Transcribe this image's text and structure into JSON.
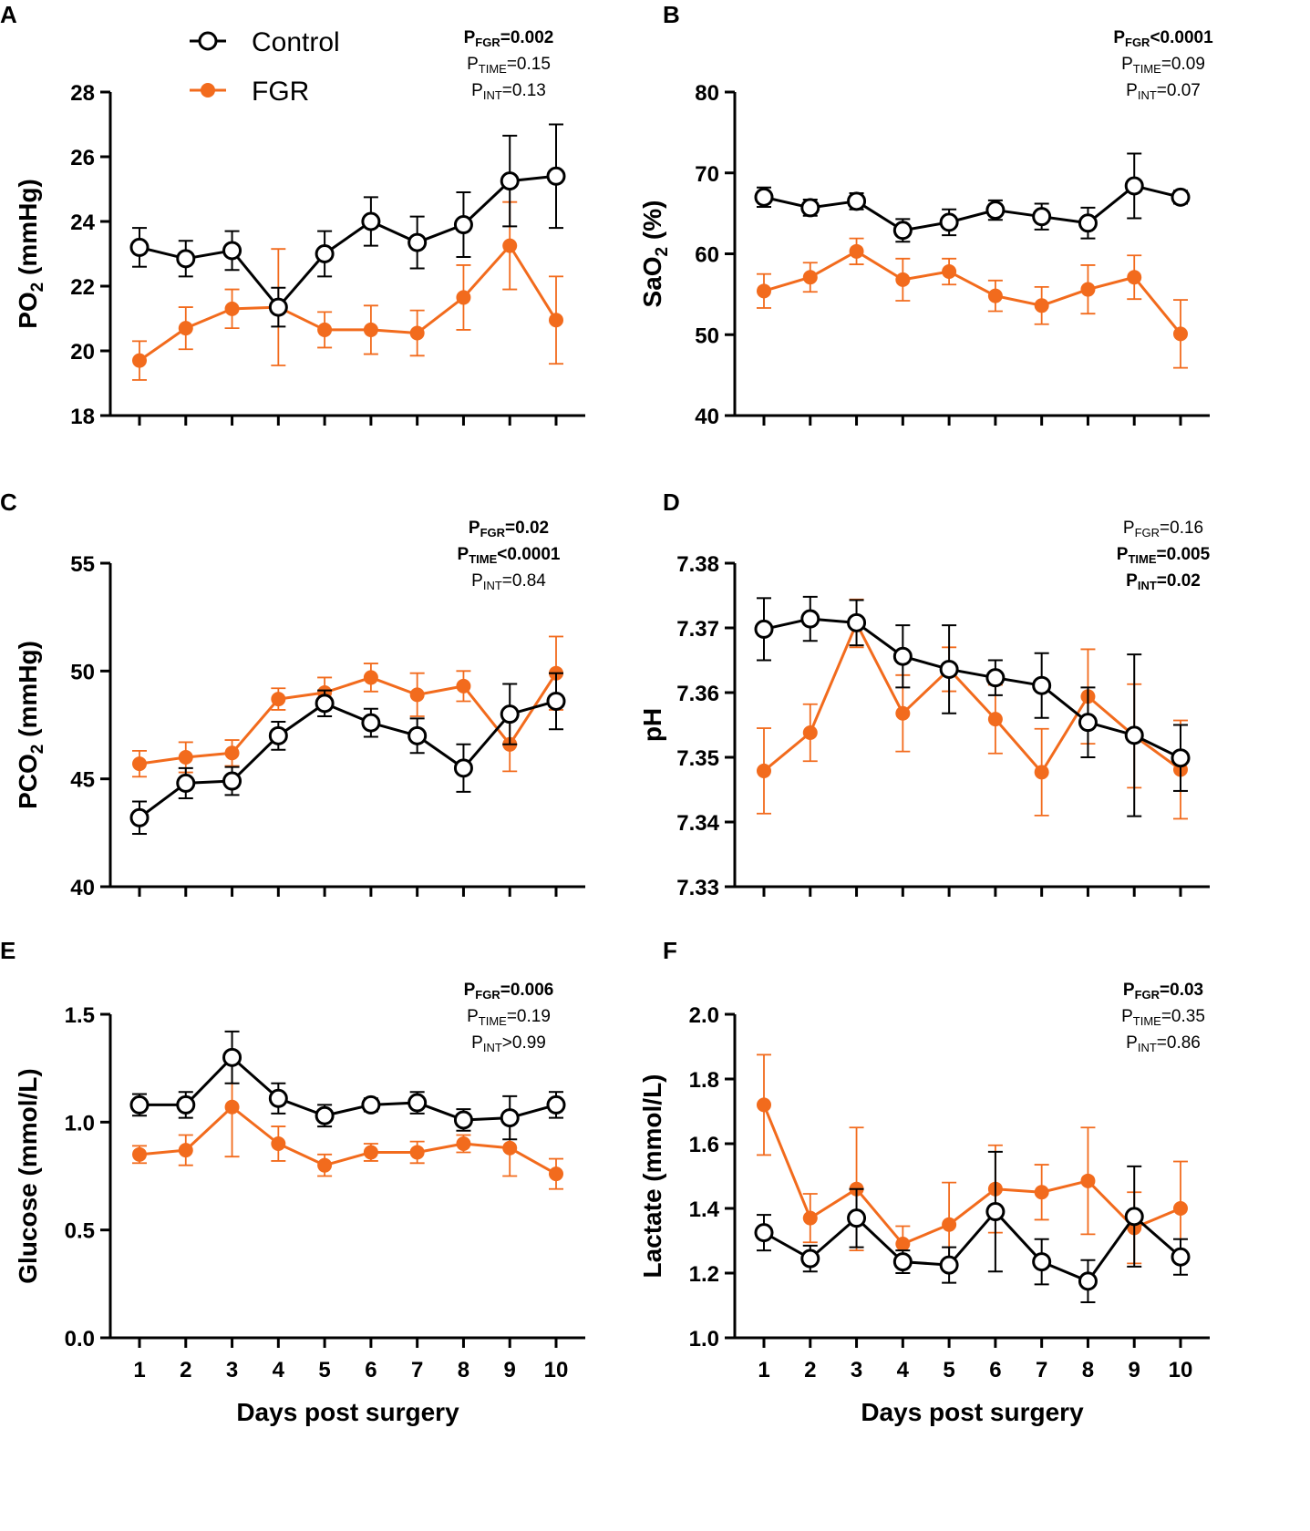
{
  "colors": {
    "control": "#000000",
    "fgr": "#F26B1D",
    "axis": "#000000",
    "background": "#FFFFFF"
  },
  "legend": {
    "control_label": "Control",
    "fgr_label": "FGR"
  },
  "chart_data": [
    {
      "panel": "A",
      "type": "line",
      "ylabel": "PO",
      "ylabel_sub": "2",
      "ylabel_suffix": " (mmHg)",
      "xlabel": "",
      "ylim": [
        18,
        28
      ],
      "yticks": [
        "18",
        "20",
        "22",
        "24",
        "26",
        "28"
      ],
      "x": [
        "1",
        "2",
        "3",
        "4",
        "5",
        "6",
        "7",
        "8",
        "9",
        "10"
      ],
      "show_xticks": false,
      "series": [
        {
          "name": "Control",
          "values": [
            23.2,
            22.85,
            23.1,
            21.35,
            23.0,
            24.0,
            23.35,
            23.9,
            25.25,
            25.4
          ],
          "errors": [
            0.6,
            0.55,
            0.6,
            0.6,
            0.7,
            0.75,
            0.8,
            1.0,
            1.4,
            1.6
          ]
        },
        {
          "name": "FGR",
          "values": [
            19.7,
            20.7,
            21.3,
            21.35,
            20.65,
            20.65,
            20.55,
            21.65,
            23.25,
            20.95
          ],
          "errors": [
            0.6,
            0.65,
            0.6,
            1.8,
            0.55,
            0.75,
            0.7,
            1.0,
            1.35,
            1.35
          ]
        }
      ],
      "stats": [
        {
          "label": "FGR",
          "value": "=0.002",
          "bold": true
        },
        {
          "label": "TIME",
          "value": "=0.15",
          "bold": false
        },
        {
          "label": "INT",
          "value": "=0.13",
          "bold": false
        }
      ]
    },
    {
      "panel": "B",
      "type": "line",
      "ylabel": "SaO",
      "ylabel_sub": "2",
      "ylabel_suffix": " (%)",
      "xlabel": "",
      "ylim": [
        40,
        80
      ],
      "yticks": [
        "40",
        "50",
        "60",
        "70",
        "80"
      ],
      "x": [
        "1",
        "2",
        "3",
        "4",
        "5",
        "6",
        "7",
        "8",
        "9",
        "10"
      ],
      "show_xticks": false,
      "series": [
        {
          "name": "Control",
          "values": [
            67.0,
            65.7,
            66.5,
            62.9,
            63.9,
            65.4,
            64.6,
            63.8,
            68.4,
            67.0
          ],
          "errors": [
            1.2,
            1.0,
            1.0,
            1.4,
            1.6,
            1.2,
            1.6,
            1.9,
            4.0,
            0.8
          ]
        },
        {
          "name": "FGR",
          "values": [
            55.4,
            57.1,
            60.3,
            56.8,
            57.8,
            54.8,
            53.6,
            55.6,
            57.1,
            50.1
          ],
          "errors": [
            2.1,
            1.8,
            1.6,
            2.6,
            1.6,
            1.9,
            2.3,
            3.0,
            2.7,
            4.2
          ]
        }
      ],
      "stats": [
        {
          "label": "FGR",
          "value": "<0.0001",
          "bold": true
        },
        {
          "label": "TIME",
          "value": "=0.09",
          "bold": false
        },
        {
          "label": "INT",
          "value": "=0.07",
          "bold": false
        }
      ]
    },
    {
      "panel": "C",
      "type": "line",
      "ylabel": "PCO",
      "ylabel_sub": "2",
      "ylabel_suffix": " (mmHg)",
      "xlabel": "",
      "ylim": [
        40,
        55
      ],
      "yticks": [
        "40",
        "45",
        "50",
        "55"
      ],
      "x": [
        "1",
        "2",
        "3",
        "4",
        "5",
        "6",
        "7",
        "8",
        "9",
        "10"
      ],
      "show_xticks": false,
      "series": [
        {
          "name": "Control",
          "values": [
            43.2,
            44.8,
            44.9,
            47.0,
            48.5,
            47.6,
            47.0,
            45.5,
            48.0,
            48.6
          ],
          "errors": [
            0.75,
            0.7,
            0.65,
            0.65,
            0.6,
            0.65,
            0.8,
            1.1,
            1.4,
            1.3
          ]
        },
        {
          "name": "FGR",
          "values": [
            45.7,
            46.0,
            46.2,
            48.7,
            49.0,
            49.7,
            48.9,
            49.3,
            46.6,
            49.9
          ],
          "errors": [
            0.6,
            0.7,
            0.6,
            0.5,
            0.7,
            0.65,
            1.0,
            0.7,
            1.25,
            1.7
          ]
        }
      ],
      "stats": [
        {
          "label": "FGR",
          "value": "=0.02",
          "bold": true
        },
        {
          "label": "TIME",
          "value": "<0.0001",
          "bold": true
        },
        {
          "label": "INT",
          "value": "=0.84",
          "bold": false
        }
      ]
    },
    {
      "panel": "D",
      "type": "line",
      "ylabel": "pH",
      "ylabel_sub": "",
      "ylabel_suffix": "",
      "xlabel": "",
      "ylim": [
        7.33,
        7.38
      ],
      "yticks": [
        "7.33",
        "7.34",
        "7.35",
        "7.36",
        "7.37",
        "7.38"
      ],
      "x": [
        "1",
        "2",
        "3",
        "4",
        "5",
        "6",
        "7",
        "8",
        "9",
        "10"
      ],
      "show_xticks": false,
      "series": [
        {
          "name": "Control",
          "values": [
            7.3698,
            7.3714,
            7.3708,
            7.3656,
            7.3636,
            7.3623,
            7.3611,
            7.3554,
            7.3534,
            7.3499
          ],
          "errors": [
            0.0048,
            0.0034,
            0.0035,
            0.0048,
            0.0068,
            0.0027,
            0.005,
            0.0054,
            0.0125,
            0.0051
          ]
        },
        {
          "name": "FGR",
          "values": [
            7.3479,
            7.3538,
            7.3707,
            7.3568,
            7.3636,
            7.3559,
            7.3477,
            7.3594,
            7.3533,
            7.3481
          ],
          "errors": [
            0.0066,
            0.0044,
            0.0037,
            0.0059,
            0.0034,
            0.0053,
            0.0067,
            0.0073,
            0.008,
            0.0076
          ]
        }
      ],
      "stats": [
        {
          "label": "FGR",
          "value": "=0.16",
          "bold": false
        },
        {
          "label": "TIME",
          "value": "=0.005",
          "bold": true
        },
        {
          "label": "INT",
          "value": "=0.02",
          "bold": true
        }
      ]
    },
    {
      "panel": "E",
      "type": "line",
      "ylabel": "Glucose (mmol/L)",
      "ylabel_sub": "",
      "ylabel_suffix": "",
      "xlabel": "Days post surgery",
      "ylim": [
        0.0,
        1.5
      ],
      "yticks": [
        "0.0",
        "0.5",
        "1.0",
        "1.5"
      ],
      "x": [
        "1",
        "2",
        "3",
        "4",
        "5",
        "6",
        "7",
        "8",
        "9",
        "10"
      ],
      "show_xticks": true,
      "series": [
        {
          "name": "Control",
          "values": [
            1.08,
            1.08,
            1.3,
            1.11,
            1.03,
            1.08,
            1.09,
            1.01,
            1.02,
            1.08
          ],
          "errors": [
            0.05,
            0.06,
            0.12,
            0.07,
            0.05,
            0.03,
            0.05,
            0.05,
            0.1,
            0.06
          ]
        },
        {
          "name": "FGR",
          "values": [
            0.85,
            0.87,
            1.07,
            0.9,
            0.8,
            0.86,
            0.86,
            0.9,
            0.88,
            0.76
          ],
          "errors": [
            0.04,
            0.07,
            0.23,
            0.08,
            0.05,
            0.04,
            0.05,
            0.04,
            0.13,
            0.07
          ]
        }
      ],
      "stats": [
        {
          "label": "FGR",
          "value": "=0.006",
          "bold": true
        },
        {
          "label": "TIME",
          "value": "=0.19",
          "bold": false
        },
        {
          "label": "INT",
          "value": ">0.99",
          "bold": false
        }
      ]
    },
    {
      "panel": "F",
      "type": "line",
      "ylabel": "Lactate (mmol/L)",
      "ylabel_sub": "",
      "ylabel_suffix": "",
      "xlabel": "Days post surgery",
      "ylim": [
        1.0,
        2.0
      ],
      "yticks": [
        "1.0",
        "1.2",
        "1.4",
        "1.6",
        "1.8",
        "2.0"
      ],
      "x": [
        "1",
        "2",
        "3",
        "4",
        "5",
        "6",
        "7",
        "8",
        "9",
        "10"
      ],
      "show_xticks": true,
      "series": [
        {
          "name": "Control",
          "values": [
            1.325,
            1.245,
            1.37,
            1.235,
            1.225,
            1.39,
            1.235,
            1.175,
            1.375,
            1.25
          ],
          "errors": [
            0.055,
            0.04,
            0.09,
            0.035,
            0.055,
            0.185,
            0.07,
            0.065,
            0.155,
            0.055
          ]
        },
        {
          "name": "FGR",
          "values": [
            1.72,
            1.37,
            1.46,
            1.29,
            1.35,
            1.46,
            1.45,
            1.485,
            1.34,
            1.4
          ],
          "errors": [
            0.155,
            0.075,
            0.19,
            0.055,
            0.13,
            0.135,
            0.085,
            0.165,
            0.11,
            0.145
          ]
        }
      ],
      "stats": [
        {
          "label": "FGR",
          "value": "=0.03",
          "bold": true
        },
        {
          "label": "TIME",
          "value": "=0.35",
          "bold": false
        },
        {
          "label": "INT",
          "value": "=0.86",
          "bold": false
        }
      ]
    }
  ]
}
